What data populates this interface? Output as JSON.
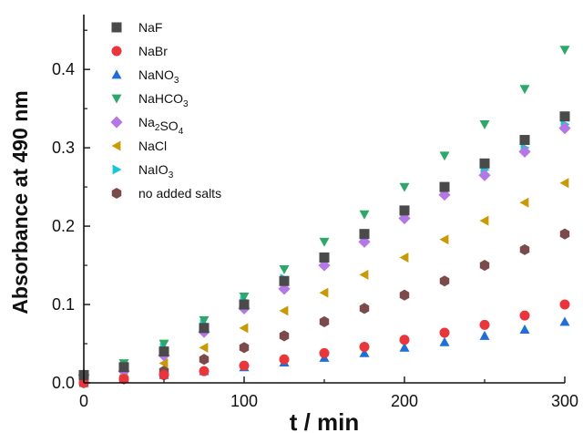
{
  "chart_data": {
    "type": "scatter",
    "xlabel": "t / min",
    "ylabel": "Absorbance at 490 nm",
    "xlim": [
      0,
      300
    ],
    "ylim": [
      0,
      0.47
    ],
    "x_ticks": [
      "0",
      "100",
      "200",
      "300"
    ],
    "y_ticks": [
      "0.0",
      "0.1",
      "0.2",
      "0.3",
      "0.4"
    ],
    "grid": false,
    "legend_position": "top-left",
    "series": [
      {
        "name": "NaF",
        "label_parts": [
          {
            "t": "NaF"
          }
        ],
        "marker": "square",
        "color": "#4a4a4a",
        "x": [
          0,
          25,
          50,
          75,
          100,
          125,
          150,
          175,
          200,
          225,
          250,
          275,
          300
        ],
        "y": [
          0.01,
          0.02,
          0.04,
          0.07,
          0.1,
          0.13,
          0.16,
          0.19,
          0.22,
          0.25,
          0.28,
          0.31,
          0.34
        ]
      },
      {
        "name": "NaBr",
        "label_parts": [
          {
            "t": "NaBr"
          }
        ],
        "marker": "circle",
        "color": "#e8363b",
        "x": [
          0,
          25,
          50,
          75,
          100,
          125,
          150,
          175,
          200,
          225,
          250,
          275,
          300
        ],
        "y": [
          0.0,
          0.005,
          0.01,
          0.015,
          0.022,
          0.03,
          0.038,
          0.046,
          0.055,
          0.064,
          0.074,
          0.086,
          0.1
        ]
      },
      {
        "name": "NaNO3",
        "label_parts": [
          {
            "t": "NaNO"
          },
          {
            "t": "3",
            "sub": true
          }
        ],
        "marker": "triangle-up",
        "color": "#1f6fd6",
        "x": [
          0,
          25,
          50,
          75,
          100,
          125,
          150,
          175,
          200,
          225,
          250,
          275,
          300
        ],
        "y": [
          0.0,
          0.005,
          0.01,
          0.015,
          0.02,
          0.026,
          0.032,
          0.038,
          0.045,
          0.052,
          0.06,
          0.068,
          0.078
        ]
      },
      {
        "name": "NaHCO3",
        "label_parts": [
          {
            "t": "NaHCO"
          },
          {
            "t": "3",
            "sub": true
          }
        ],
        "marker": "triangle-down",
        "color": "#2ea86a",
        "x": [
          0,
          25,
          50,
          75,
          100,
          125,
          150,
          175,
          200,
          225,
          250,
          275,
          300
        ],
        "y": [
          0.01,
          0.025,
          0.05,
          0.08,
          0.11,
          0.145,
          0.18,
          0.215,
          0.25,
          0.29,
          0.33,
          0.375,
          0.425
        ]
      },
      {
        "name": "Na2SO4",
        "label_parts": [
          {
            "t": "Na"
          },
          {
            "t": "2",
            "sub": true
          },
          {
            "t": "SO"
          },
          {
            "t": "4",
            "sub": true
          }
        ],
        "marker": "diamond",
        "color": "#b478e6",
        "x": [
          0,
          25,
          50,
          75,
          100,
          125,
          150,
          175,
          200,
          225,
          250,
          275,
          300
        ],
        "y": [
          0.01,
          0.015,
          0.035,
          0.065,
          0.095,
          0.12,
          0.15,
          0.18,
          0.21,
          0.24,
          0.265,
          0.295,
          0.325
        ]
      },
      {
        "name": "NaCl",
        "label_parts": [
          {
            "t": "NaCl"
          }
        ],
        "marker": "triangle-left",
        "color": "#c99a06",
        "x": [
          0,
          25,
          50,
          75,
          100,
          125,
          150,
          175,
          200,
          225,
          250,
          275,
          300
        ],
        "y": [
          0.0,
          0.01,
          0.025,
          0.045,
          0.07,
          0.092,
          0.115,
          0.138,
          0.16,
          0.183,
          0.207,
          0.23,
          0.255
        ]
      },
      {
        "name": "NaIO3",
        "label_parts": [
          {
            "t": "NaIO"
          },
          {
            "t": "3",
            "sub": true
          }
        ],
        "marker": "triangle-right",
        "color": "#19c7d4",
        "x": [
          0,
          25,
          50,
          75,
          100,
          125,
          150,
          175,
          200,
          225,
          250,
          275,
          300
        ],
        "y": [
          0.01,
          0.02,
          0.045,
          0.075,
          0.105,
          0.133,
          0.16,
          0.188,
          0.215,
          0.245,
          0.272,
          0.3,
          0.33
        ]
      },
      {
        "name": "no added salts",
        "label_parts": [
          {
            "t": "no added salts"
          }
        ],
        "marker": "hexagon",
        "color": "#7b4a4a",
        "x": [
          0,
          25,
          50,
          75,
          100,
          125,
          150,
          175,
          200,
          225,
          250,
          275,
          300
        ],
        "y": [
          0.0,
          0.005,
          0.015,
          0.03,
          0.045,
          0.06,
          0.078,
          0.095,
          0.112,
          0.13,
          0.15,
          0.17,
          0.19
        ]
      }
    ]
  }
}
